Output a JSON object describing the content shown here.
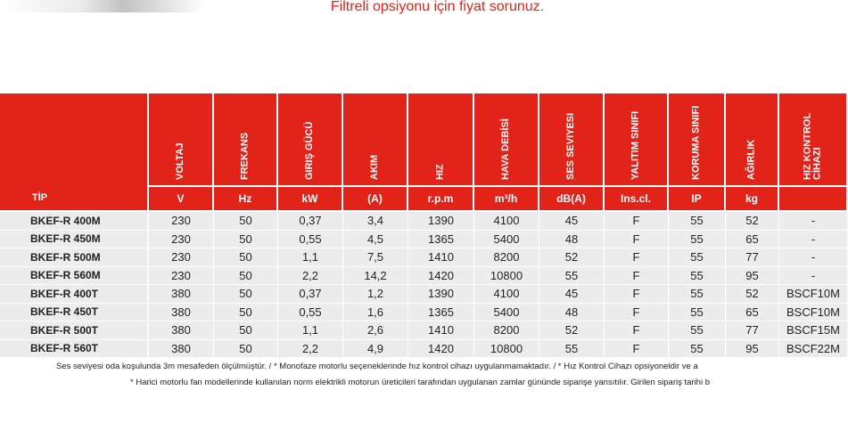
{
  "notice": "Filtreli opsiyonu için fiyat sorunuz.",
  "table": {
    "tip_label": "TİP",
    "headers": [
      "VOLTAJ",
      "FREKANS",
      "GIRIŞ GÜCÜ",
      "AKIM",
      "HIZ",
      "HAVA DEBİSİ",
      "SES SEVIYESI",
      "YALITIM SINIFI",
      "KORUMA SINIFI",
      "AĞIRLIK",
      "HIZ KONTROL CİHAZI"
    ],
    "units": [
      "V",
      "Hz",
      "kW",
      "(A)",
      "r.p.m",
      "m³/h",
      "dB(A)",
      "Ins.cl.",
      "IP",
      "kg"
    ],
    "rows": [
      [
        "BKEF-R 400M",
        "230",
        "50",
        "0,37",
        "3,4",
        "1390",
        "4100",
        "45",
        "F",
        "55",
        "52",
        "-"
      ],
      [
        "BKEF-R 450M",
        "230",
        "50",
        "0,55",
        "4,5",
        "1365",
        "5400",
        "48",
        "F",
        "55",
        "65",
        "-"
      ],
      [
        "BKEF-R 500M",
        "230",
        "50",
        "1,1",
        "7,5",
        "1410",
        "8200",
        "52",
        "F",
        "55",
        "77",
        "-"
      ],
      [
        "BKEF-R 560M",
        "230",
        "50",
        "2,2",
        "14,2",
        "1420",
        "10800",
        "55",
        "F",
        "55",
        "95",
        "-"
      ],
      [
        "BKEF-R 400T",
        "380",
        "50",
        "0,37",
        "1,2",
        "1390",
        "4100",
        "45",
        "F",
        "55",
        "52",
        "BSCF10M"
      ],
      [
        "BKEF-R 450T",
        "380",
        "50",
        "0,55",
        "1,6",
        "1365",
        "5400",
        "48",
        "F",
        "55",
        "65",
        "BSCF10M"
      ],
      [
        "BKEF-R 500T",
        "380",
        "50",
        "1,1",
        "2,6",
        "1410",
        "8200",
        "52",
        "F",
        "55",
        "77",
        "BSCF15M"
      ],
      [
        "BKEF-R 560T",
        "380",
        "50",
        "2,2",
        "4,9",
        "1420",
        "10800",
        "55",
        "F",
        "55",
        "95",
        "BSCF22M"
      ]
    ]
  },
  "footnotes": [
    "Ses seviyesi oda koşulunda 3m mesafeden ölçülmüştür. / * Monofaze motorlu seçeneklerinde hız kontrol cihazı uygulanmamaktadır. / * Hız Kontrol Cihazı opsiyoneldir ve a",
    "* Harici motorlu fan modellerinde kullanılan norm elektrikli motorun üreticileri tarafından uygulanan zamlar gününde siparişe yansıtılır. Girilen sipariş tarihi b"
  ]
}
